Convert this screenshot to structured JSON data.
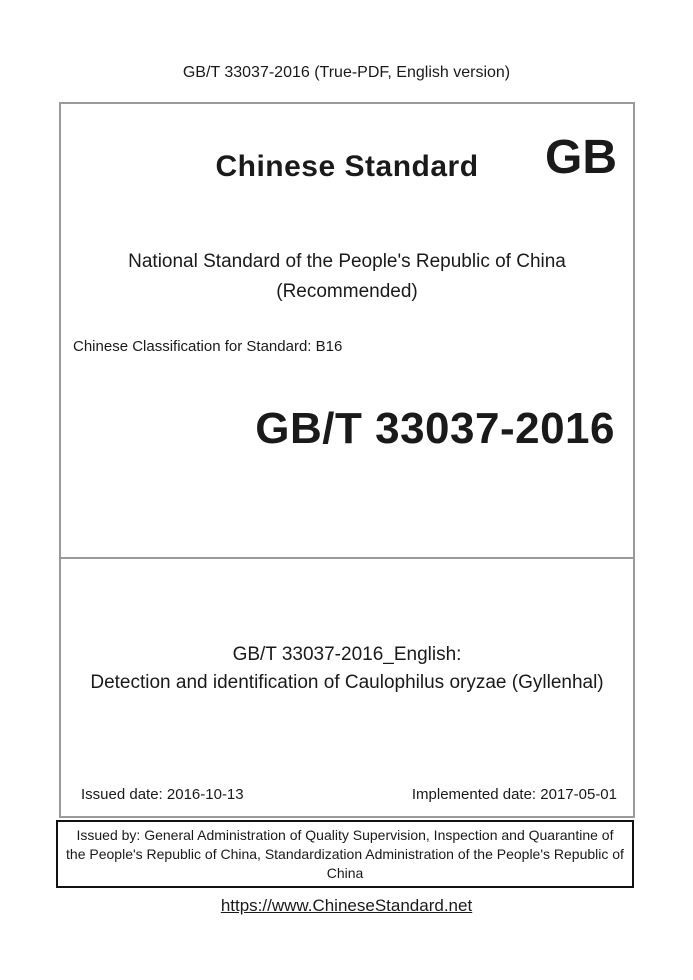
{
  "page": {
    "header": "GB/T 33037-2016 (True-PDF, English version)",
    "footer_link": "https://www.ChineseStandard.net"
  },
  "cover": {
    "brand_title": "Chinese Standard",
    "logo": "GB",
    "subtitle_line1": "National Standard of the People's Republic of China",
    "subtitle_line2": "(Recommended)",
    "classification": "Chinese Classification for Standard: B16",
    "standard_number": "GB/T 33037-2016"
  },
  "detail": {
    "title_line1": "GB/T 33037-2016_English:",
    "title_line2": "Detection and identification of Caulophilus oryzae (Gyllenhal)",
    "issued_date": "Issued date: 2016-10-13",
    "implemented_date": "Implemented date: 2017-05-01"
  },
  "issuer": {
    "line1": "Issued by: General Administration of Quality Supervision, Inspection and Quarantine of",
    "line2": "the People's Republic of China, Standardization Administration of the People's Republic of",
    "line3": "China"
  },
  "colors": {
    "box_border_gray": "#9a9a9a",
    "issuer_border_black": "#111111",
    "text": "#1a1a1a"
  }
}
